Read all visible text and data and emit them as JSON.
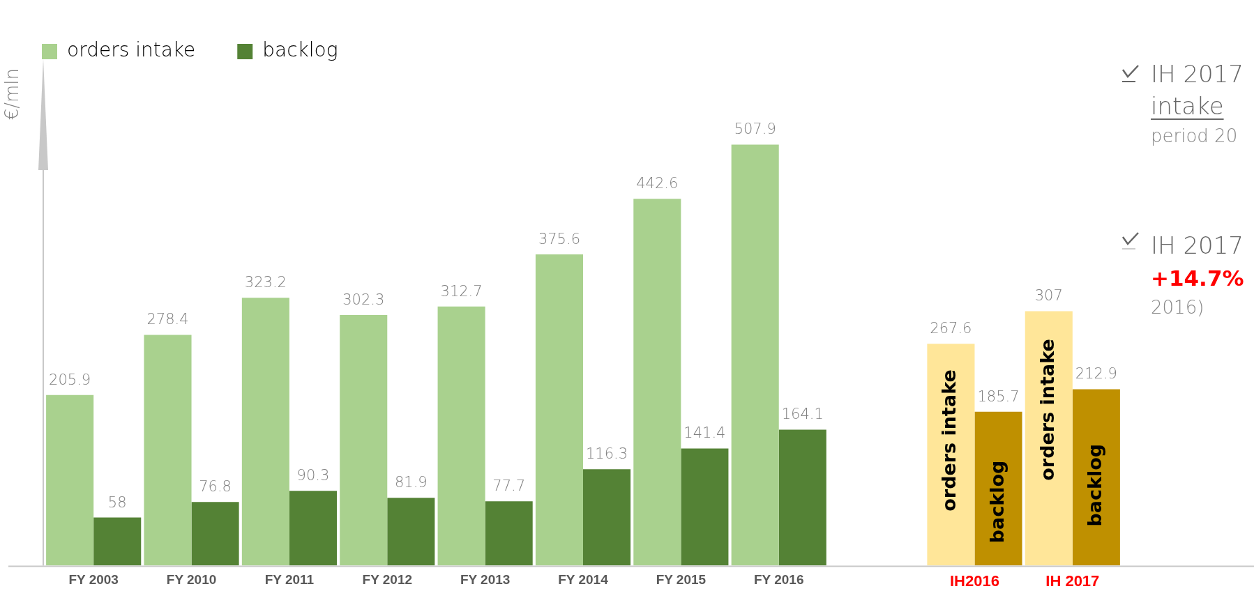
{
  "chart_data": {
    "type": "bar",
    "ylabel": "€/mln",
    "categories": [
      "FY 2003",
      "FY 2010",
      "FY 2011",
      "FY 2012",
      "FY 2013",
      "FY 2014",
      "FY 2015",
      "FY 2016",
      null,
      "IH2016",
      "IH 2017"
    ],
    "series": [
      {
        "name": "orders intake",
        "color": "#a9d18e",
        "colors": [
          "#a9d18e",
          "#a9d18e",
          "#a9d18e",
          "#a9d18e",
          "#a9d18e",
          "#a9d18e",
          "#a9d18e",
          "#a9d18e",
          "#a9d18e",
          "#ffe699",
          "#ffe699"
        ],
        "values": [
          205.9,
          278.4,
          323.2,
          302.3,
          312.7,
          375.6,
          442.6,
          507.9,
          null,
          267.6,
          307
        ]
      },
      {
        "name": "backlog",
        "color": "#548235",
        "colors": [
          "#548235",
          "#548235",
          "#548235",
          "#548235",
          "#548235",
          "#548235",
          "#548235",
          "#548235",
          "#548235",
          "#bf9000",
          "#bf9000"
        ],
        "values": [
          58,
          76.8,
          90.3,
          81.9,
          77.7,
          116.3,
          141.4,
          164.1,
          null,
          185.7,
          212.9
        ]
      }
    ],
    "tick_labels": "x",
    "grid": false,
    "legend": "top",
    "data_labels": true,
    "annotations": [
      {
        "text": "orders intake",
        "x": "IH2016",
        "y": 151
      },
      {
        "text": "backlog",
        "x": "IH2016",
        "y": 77
      },
      {
        "text": "orders intake",
        "x": "IH 2017",
        "y": 188
      },
      {
        "text": "backlog",
        "x": "IH 2017",
        "y": 97
      },
      "IH 2017",
      "intake",
      "period 20",
      "IH 2017",
      "+14.7%",
      "2016)"
    ]
  }
}
